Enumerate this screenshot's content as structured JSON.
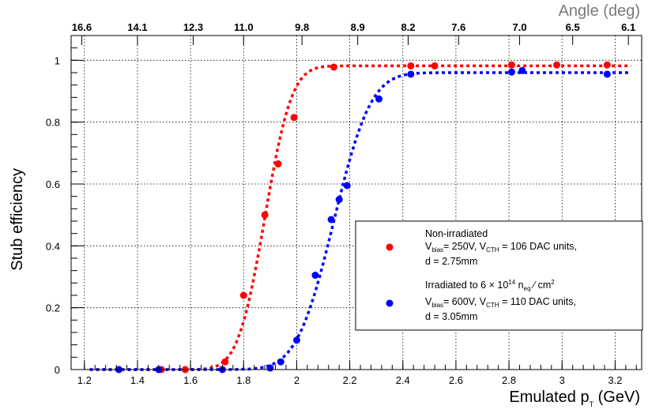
{
  "chart_data": {
    "type": "scatter",
    "xlabel_main": "Emulated p",
    "xlabel_sub": "T",
    "xlabel_unit": " (GeV)",
    "ylabel": "Stub efficiency",
    "top_axis_title": "Angle (deg)",
    "xlim": [
      1.15,
      3.3
    ],
    "ylim": [
      0,
      1.08
    ],
    "grid": true,
    "x_ticks": [
      1.2,
      1.4,
      1.6,
      1.8,
      2.0,
      2.2,
      2.4,
      2.6,
      2.8,
      3.0,
      3.2
    ],
    "x_tick_labels": [
      "1.2",
      "1.4",
      "1.6",
      "1.8",
      "2",
      "2.2",
      "2.4",
      "2.6",
      "2.8",
      "3",
      "3.2"
    ],
    "y_ticks": [
      0,
      0.2,
      0.4,
      0.6,
      0.8,
      1.0
    ],
    "y_tick_labels": [
      "0",
      "0.2",
      "0.4",
      "0.6",
      "0.8",
      "1"
    ],
    "top_ticks": [
      {
        "x": 1.19,
        "label": "16.6"
      },
      {
        "x": 1.4,
        "label": "14.1"
      },
      {
        "x": 1.61,
        "label": "12.3"
      },
      {
        "x": 1.8,
        "label": "11.0"
      },
      {
        "x": 2.02,
        "label": "9.8"
      },
      {
        "x": 2.23,
        "label": "8.9"
      },
      {
        "x": 2.42,
        "label": "8.2"
      },
      {
        "x": 2.61,
        "label": "7.6"
      },
      {
        "x": 2.84,
        "label": "7.0"
      },
      {
        "x": 3.04,
        "label": "6.5"
      },
      {
        "x": 3.25,
        "label": "6.1"
      }
    ],
    "legend_position": "bottom-right",
    "series": [
      {
        "name": "Non-irradiated",
        "color": "#ff0000",
        "x": [
          1.33,
          1.49,
          1.58,
          1.73,
          1.8,
          1.88,
          1.93,
          1.99,
          2.14,
          2.43,
          2.52,
          2.81,
          2.98,
          3.17
        ],
        "y": [
          0.0,
          0.0,
          0.0,
          0.025,
          0.24,
          0.5,
          0.665,
          0.815,
          0.978,
          0.982,
          0.982,
          0.985,
          0.985,
          0.985
        ],
        "fit": {
          "plateau": 0.982,
          "mu": 1.88,
          "sigma": 0.08
        }
      },
      {
        "name": "Irradiated to 6 × 10¹⁴ neq / cm²",
        "color": "#0000ff",
        "x": [
          1.33,
          1.48,
          1.72,
          1.9,
          1.94,
          2.0,
          2.07,
          2.13,
          2.16,
          2.19,
          2.31,
          2.43,
          2.81,
          2.85,
          3.17
        ],
        "y": [
          0.0,
          0.0,
          0.0,
          0.005,
          0.025,
          0.095,
          0.305,
          0.485,
          0.55,
          0.595,
          0.875,
          0.955,
          0.962,
          0.967,
          0.955
        ],
        "fit": {
          "plateau": 0.96,
          "mu": 2.14,
          "sigma": 0.11
        }
      }
    ]
  },
  "legend": {
    "entry1": {
      "line1": "Non-irradiated",
      "line2_a": "V",
      "line2_a_sub": "bias",
      "line2_b": "= 250V, V",
      "line2_b_sub": "CTH",
      "line2_c": " = 106 DAC units,",
      "line3": "d = 2.75mm"
    },
    "entry2": {
      "line1_a": "Irradiated to 6 × 10",
      "line1_sup": "14",
      "line1_b": " n",
      "line1_sub": "eq",
      "line1_c": " ⁄ cm",
      "line1_sup2": "2",
      "line2_a": "V",
      "line2_a_sub": "bias",
      "line2_b": "= 600V, V",
      "line2_b_sub": "CTH",
      "line2_c": " = 110 DAC units,",
      "line3": "d = 3.05mm"
    }
  }
}
